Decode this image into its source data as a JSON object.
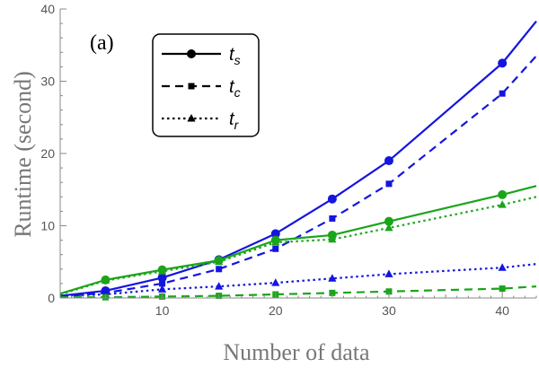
{
  "chart_data": {
    "type": "line",
    "title": "",
    "panel_label": "(a)",
    "xlabel": "Number of data",
    "ylabel": "Runtime (second)",
    "xlim": [
      1,
      43
    ],
    "ylim": [
      0,
      40
    ],
    "x_ticks": [
      10,
      20,
      30,
      40
    ],
    "y_ticks": [
      0,
      10,
      20,
      30,
      40
    ],
    "grid": false,
    "legend": {
      "placement": "top-left",
      "entries": [
        {
          "base": "t",
          "sub": "s",
          "dash": "solid",
          "marker": "circle"
        },
        {
          "base": "t",
          "sub": "c",
          "dash": "dashed",
          "marker": "square"
        },
        {
          "base": "t",
          "sub": "r",
          "dash": "dotted",
          "marker": "triangle"
        }
      ]
    },
    "colors": {
      "blue": "#1515e0",
      "green": "#1aa51a"
    },
    "series": [
      {
        "color": "blue",
        "dash": "solid",
        "marker": "circle",
        "x": [
          1,
          5,
          10,
          15,
          20,
          25,
          30,
          40,
          43
        ],
        "y": [
          0.3,
          1.0,
          2.8,
          5.3,
          8.9,
          13.7,
          19.0,
          32.5,
          38.3
        ]
      },
      {
        "color": "blue",
        "dash": "dashed",
        "marker": "square",
        "x": [
          1,
          5,
          10,
          15,
          20,
          25,
          30,
          40,
          43
        ],
        "y": [
          0.2,
          0.7,
          2.0,
          4.0,
          6.8,
          11.0,
          15.8,
          28.3,
          33.5
        ]
      },
      {
        "color": "blue",
        "dash": "dotted",
        "marker": "triangle",
        "x": [
          1,
          5,
          10,
          15,
          20,
          25,
          30,
          40,
          43
        ],
        "y": [
          0.3,
          0.5,
          1.2,
          1.6,
          2.1,
          2.7,
          3.3,
          4.2,
          4.7
        ]
      },
      {
        "color": "green",
        "dash": "solid",
        "marker": "circle",
        "x": [
          1,
          5,
          10,
          15,
          20,
          25,
          30,
          40,
          43
        ],
        "y": [
          0.6,
          2.5,
          3.9,
          5.2,
          8.0,
          8.7,
          10.6,
          14.3,
          15.5
        ]
      },
      {
        "color": "green",
        "dash": "dashed",
        "marker": "square",
        "x": [
          1,
          5,
          10,
          15,
          20,
          25,
          30,
          40,
          43
        ],
        "y": [
          0.1,
          0.1,
          0.2,
          0.3,
          0.5,
          0.7,
          0.9,
          1.3,
          1.6
        ]
      },
      {
        "color": "green",
        "dash": "dotted",
        "marker": "triangle",
        "x": [
          1,
          5,
          10,
          15,
          20,
          25,
          30,
          40,
          43
        ],
        "y": [
          0.5,
          2.4,
          3.7,
          5.0,
          7.7,
          8.1,
          9.7,
          12.9,
          14.0
        ]
      }
    ]
  }
}
